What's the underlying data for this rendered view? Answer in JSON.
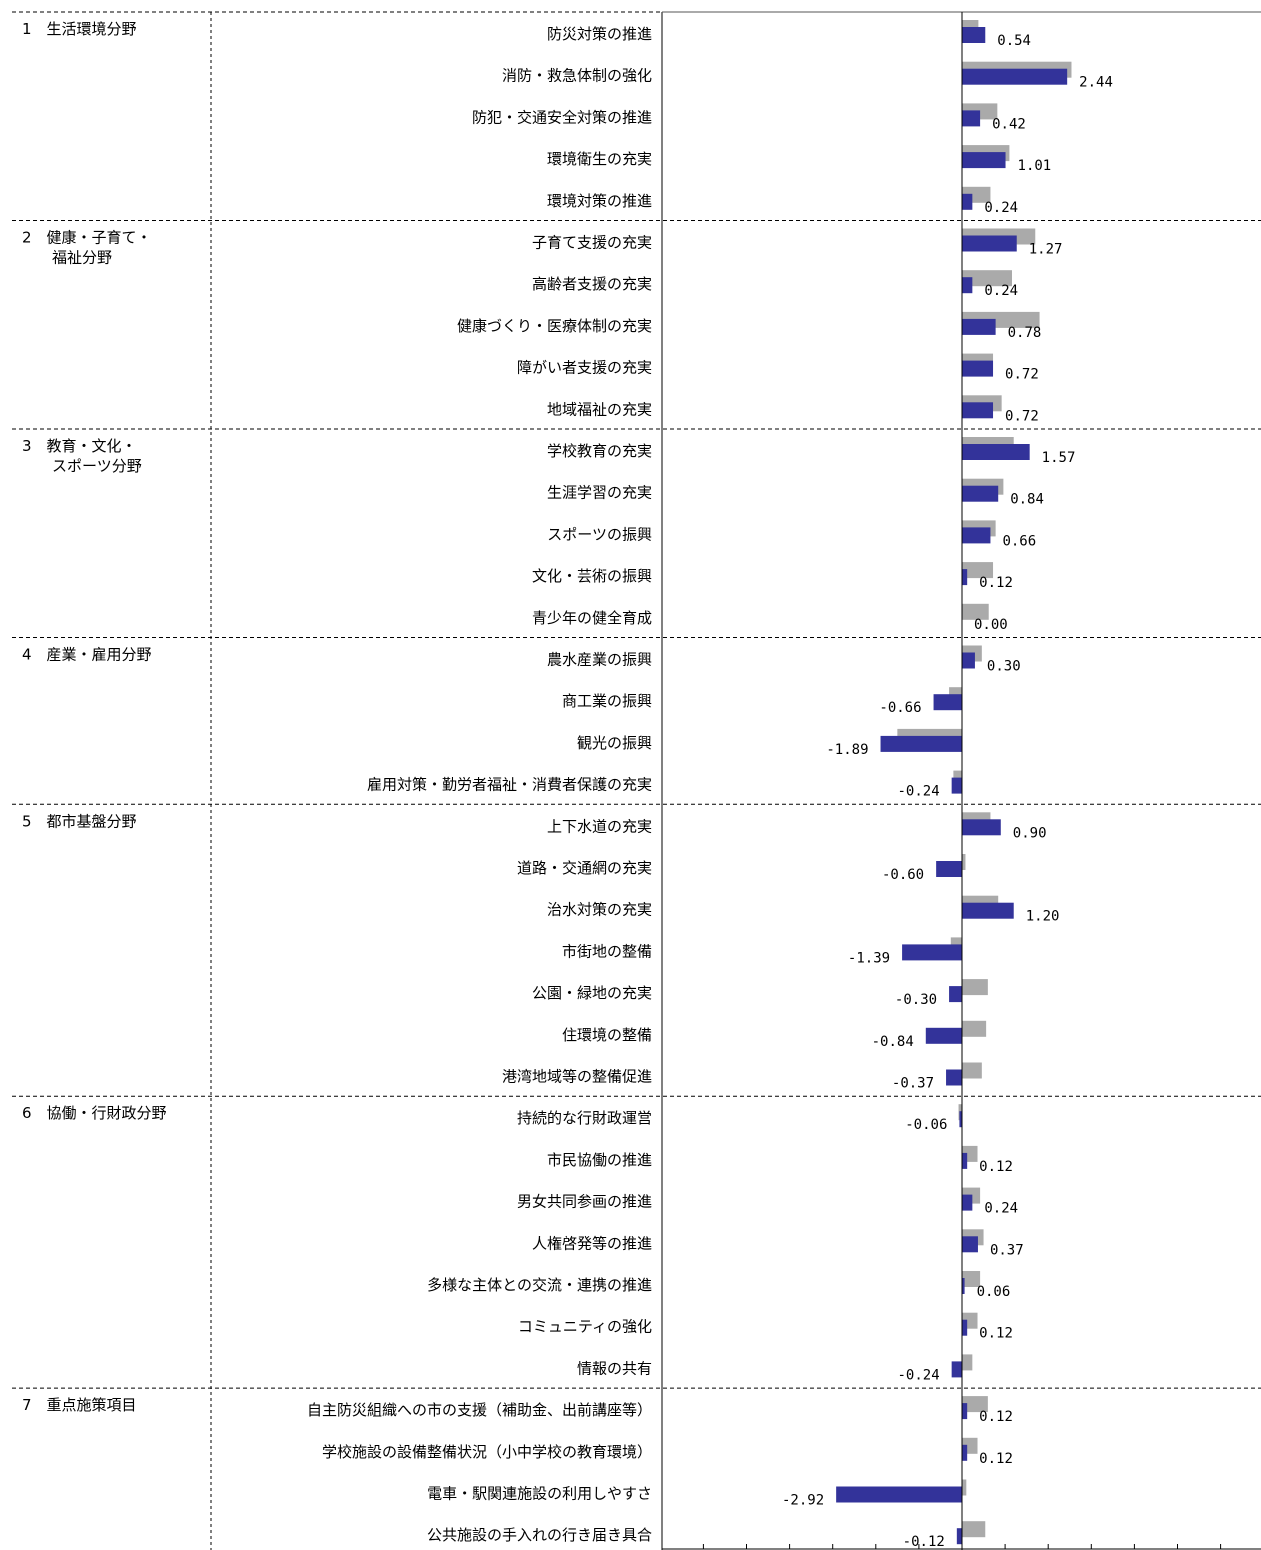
{
  "chart_data": {
    "type": "bar",
    "orientation": "horizontal",
    "xlim": [
      -7,
      6.5
    ],
    "grid": false,
    "legend": "none",
    "colors": {
      "primary": "#33339a",
      "secondary": "#aaaaaa"
    },
    "groups": [
      {
        "label": "1　生活環境分野",
        "items": [
          {
            "category": "防災対策の推進",
            "value": 0.54,
            "value_label": "0.54",
            "secondary": 0.38
          },
          {
            "category": "消防・救急体制の強化",
            "value": 2.44,
            "value_label": "2.44",
            "secondary": 2.54
          },
          {
            "category": "防犯・交通安全対策の推進",
            "value": 0.42,
            "value_label": "0.42",
            "secondary": 0.82
          },
          {
            "category": "環境衛生の充実",
            "value": 1.01,
            "value_label": "1.01",
            "secondary": 1.1
          },
          {
            "category": "環境対策の推進",
            "value": 0.24,
            "value_label": "0.24",
            "secondary": 0.66
          }
        ]
      },
      {
        "label": "2　健康・子育て・\n　　福祉分野",
        "items": [
          {
            "category": "子育て支援の充実",
            "value": 1.27,
            "value_label": "1.27",
            "secondary": 1.7
          },
          {
            "category": "高齢者支援の充実",
            "value": 0.24,
            "value_label": "0.24",
            "secondary": 1.16
          },
          {
            "category": "健康づくり・医療体制の充実",
            "value": 0.78,
            "value_label": "0.78",
            "secondary": 1.8
          },
          {
            "category": "障がい者支援の充実",
            "value": 0.72,
            "value_label": "0.72",
            "secondary": 0.72
          },
          {
            "category": "地域福祉の充実",
            "value": 0.72,
            "value_label": "0.72",
            "secondary": 0.92
          }
        ]
      },
      {
        "label": "3　教育・文化・\n　　スポーツ分野",
        "items": [
          {
            "category": "学校教育の充実",
            "value": 1.57,
            "value_label": "1.57",
            "secondary": 1.2
          },
          {
            "category": "生涯学習の充実",
            "value": 0.84,
            "value_label": "0.84",
            "secondary": 0.96
          },
          {
            "category": "スポーツの振興",
            "value": 0.66,
            "value_label": "0.66",
            "secondary": 0.78
          },
          {
            "category": "文化・芸術の振興",
            "value": 0.12,
            "value_label": "0.12",
            "secondary": 0.72
          },
          {
            "category": "青少年の健全育成",
            "value": 0.0,
            "value_label": "0.00",
            "secondary": 0.62
          }
        ]
      },
      {
        "label": "4　産業・雇用分野",
        "items": [
          {
            "category": "農水産業の振興",
            "value": 0.3,
            "value_label": "0.30",
            "secondary": 0.46
          },
          {
            "category": "商工業の振興",
            "value": -0.66,
            "value_label": "-0.66",
            "secondary": -0.3
          },
          {
            "category": "観光の振興",
            "value": -1.89,
            "value_label": "-1.89",
            "secondary": -1.5
          },
          {
            "category": "雇用対策・勤労者福祉・消費者保護の充実",
            "value": -0.24,
            "value_label": "-0.24",
            "secondary": -0.2
          }
        ]
      },
      {
        "label": "5　都市基盤分野",
        "items": [
          {
            "category": "上下水道の充実",
            "value": 0.9,
            "value_label": "0.90",
            "secondary": 0.66
          },
          {
            "category": "道路・交通網の充実",
            "value": -0.6,
            "value_label": "-0.60",
            "secondary": 0.08
          },
          {
            "category": "治水対策の充実",
            "value": 1.2,
            "value_label": "1.20",
            "secondary": 0.84
          },
          {
            "category": "市街地の整備",
            "value": -1.39,
            "value_label": "-1.39",
            "secondary": -0.26
          },
          {
            "category": "公園・緑地の充実",
            "value": -0.3,
            "value_label": "-0.30",
            "secondary": 0.6
          },
          {
            "category": "住環境の整備",
            "value": -0.84,
            "value_label": "-0.84",
            "secondary": 0.56
          },
          {
            "category": "港湾地域等の整備促進",
            "value": -0.37,
            "value_label": "-0.37",
            "secondary": 0.46
          }
        ]
      },
      {
        "label": "6　協働・行財政分野",
        "items": [
          {
            "category": "持続的な行財政運営",
            "value": -0.06,
            "value_label": "-0.06",
            "secondary": -0.08
          },
          {
            "category": "市民協働の推進",
            "value": 0.12,
            "value_label": "0.12",
            "secondary": 0.36
          },
          {
            "category": "男女共同参画の推進",
            "value": 0.24,
            "value_label": "0.24",
            "secondary": 0.42
          },
          {
            "category": "人権啓発等の推進",
            "value": 0.37,
            "value_label": "0.37",
            "secondary": 0.5
          },
          {
            "category": "多様な主体との交流・連携の推進",
            "value": 0.06,
            "value_label": "0.06",
            "secondary": 0.42
          },
          {
            "category": "コミュニティの強化",
            "value": 0.12,
            "value_label": "0.12",
            "secondary": 0.36
          },
          {
            "category": "情報の共有",
            "value": -0.24,
            "value_label": "-0.24",
            "secondary": 0.24
          }
        ]
      },
      {
        "label": "7　重点施策項目",
        "items": [
          {
            "category": "自主防災組織への市の支援（補助金、出前講座等）",
            "value": 0.12,
            "value_label": "0.12",
            "secondary": 0.6
          },
          {
            "category": "学校施設の設備整備状況（小中学校の教育環境）",
            "value": 0.12,
            "value_label": "0.12",
            "secondary": 0.36
          },
          {
            "category": "電車・駅関連施設の利用しやすさ",
            "value": -2.92,
            "value_label": "-2.92",
            "secondary": 0.1
          },
          {
            "category": "公共施設の手入れの行き届き具合",
            "value": -0.12,
            "value_label": "-0.12",
            "secondary": 0.54
          }
        ]
      }
    ]
  }
}
